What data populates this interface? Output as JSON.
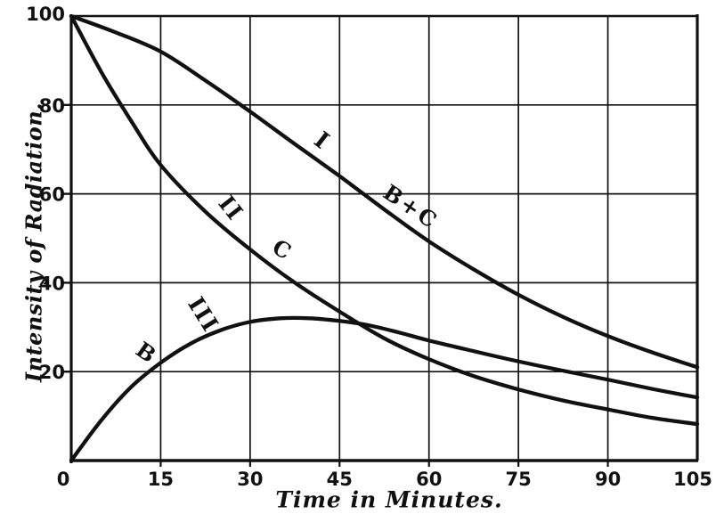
{
  "figure": {
    "background": "#ffffff",
    "ink_color": "#111111",
    "description": "Scanned textbook figure: decay curves of radioactive deposit"
  },
  "chart_data": {
    "type": "line",
    "title": "",
    "xlabel": "Time in Minutes.",
    "ylabel": "Intensity of Radiation.",
    "xlim": [
      0,
      105
    ],
    "ylim": [
      0,
      100
    ],
    "x_ticks": [
      0,
      15,
      30,
      45,
      60,
      75,
      90,
      105
    ],
    "y_ticks": [
      20,
      40,
      60,
      80,
      100
    ],
    "grid": true,
    "legend_position": "none (curves labeled inline on plot)",
    "series": [
      {
        "name": "I",
        "inline_labels": [
          "I",
          "B+C"
        ],
        "x": [
          0,
          7.5,
          15,
          22.5,
          30,
          37.5,
          45,
          52.5,
          60,
          67.5,
          75,
          82.5,
          90,
          97.5,
          105
        ],
        "y": [
          100,
          96.3,
          92,
          85.5,
          78.5,
          71.2,
          64,
          56.5,
          49.3,
          43,
          37.3,
          32.3,
          28,
          24.3,
          21
        ]
      },
      {
        "name": "II",
        "inline_labels": [
          "II",
          "C"
        ],
        "x": [
          0,
          5,
          10,
          15,
          22.5,
          30,
          37.5,
          45,
          52.5,
          60,
          67.5,
          75,
          82.5,
          90,
          97.5,
          105
        ],
        "y": [
          100,
          87.5,
          76.5,
          66.5,
          56,
          47.5,
          40,
          33.5,
          27.5,
          22.8,
          19,
          16,
          13.5,
          11.5,
          9.6,
          8.2
        ]
      },
      {
        "name": "III",
        "inline_labels": [
          "III",
          "B"
        ],
        "x": [
          0,
          5,
          10,
          15,
          20,
          25,
          30,
          35,
          40,
          45,
          50,
          55,
          60,
          67.5,
          75,
          82.5,
          90,
          97.5,
          105
        ],
        "y": [
          0,
          9,
          16.5,
          22,
          26.3,
          29.3,
          31.2,
          32,
          32,
          31.4,
          30.4,
          28.8,
          27,
          24.6,
          22.3,
          20.2,
          18.2,
          16.1,
          14.2
        ]
      }
    ],
    "annotations": [
      {
        "text": "I",
        "x": 41.2,
        "y": 70.7,
        "rotate": 38,
        "size": 26,
        "spacing": 0
      },
      {
        "text": "B+C",
        "x": 56.3,
        "y": 55.7,
        "rotate": 34,
        "size": 24,
        "spacing": 3
      },
      {
        "text": "II",
        "x": 25.8,
        "y": 55.7,
        "rotate": 52,
        "size": 25,
        "spacing": 2
      },
      {
        "text": "C",
        "x": 34.7,
        "y": 46.1,
        "rotate": 30,
        "size": 24,
        "spacing": 0
      },
      {
        "text": "III",
        "x": 21.1,
        "y": 31.9,
        "rotate": 58,
        "size": 25,
        "spacing": 2
      },
      {
        "text": "B",
        "x": 11.8,
        "y": 23.0,
        "rotate": 35,
        "size": 24,
        "spacing": 0
      }
    ]
  }
}
